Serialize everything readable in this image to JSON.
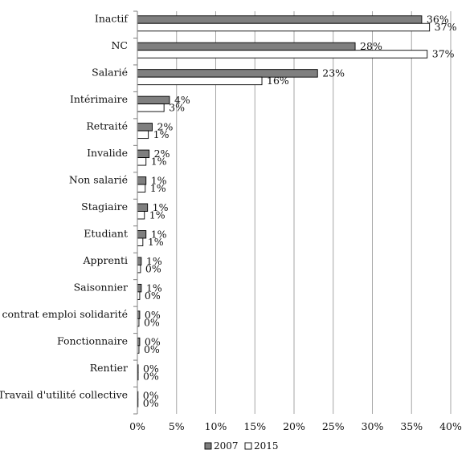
{
  "chart_data": {
    "type": "bar",
    "orientation": "horizontal",
    "title": "",
    "xlabel": "",
    "ylabel": "",
    "xlim": [
      0,
      40
    ],
    "x_ticks": [
      "0%",
      "5%",
      "10%",
      "15%",
      "20%",
      "25%",
      "30%",
      "35%",
      "40%"
    ],
    "grid": "vertical",
    "legend_position": "bottom",
    "categories": [
      "Inactif",
      "NC",
      "Salarié",
      "Intérimaire",
      "Retraité",
      "Invalide",
      "Non salarié",
      "Stagiaire",
      "Etudiant",
      "Apprenti",
      "Saisonnier",
      "contrat emploi solidarité",
      "Fonctionnaire",
      "Rentier",
      "Travail d'utilité collective"
    ],
    "series": [
      {
        "name": "2007",
        "color": "#7f7f7f",
        "values": [
          36.3,
          27.8,
          23.0,
          4.1,
          1.9,
          1.5,
          1.1,
          1.3,
          1.1,
          0.5,
          0.5,
          0.3,
          0.3,
          0.1,
          0.05
        ],
        "labels": [
          "36%",
          "28%",
          "23%",
          "4%",
          "2%",
          "2%",
          "1%",
          "1%",
          "1%",
          "1%",
          "1%",
          "0%",
          "0%",
          "0%",
          "0%"
        ]
      },
      {
        "name": "2015",
        "color": "#ffffff",
        "values": [
          37.3,
          37.0,
          15.9,
          3.4,
          1.4,
          1.1,
          1.0,
          0.9,
          0.7,
          0.4,
          0.3,
          0.2,
          0.2,
          0.1,
          0.05
        ],
        "labels": [
          "37%",
          "37%",
          "16%",
          "3%",
          "1%",
          "1%",
          "1%",
          "1%",
          "1%",
          "0%",
          "0%",
          "0%",
          "0%",
          "0%",
          "0%"
        ]
      }
    ]
  }
}
